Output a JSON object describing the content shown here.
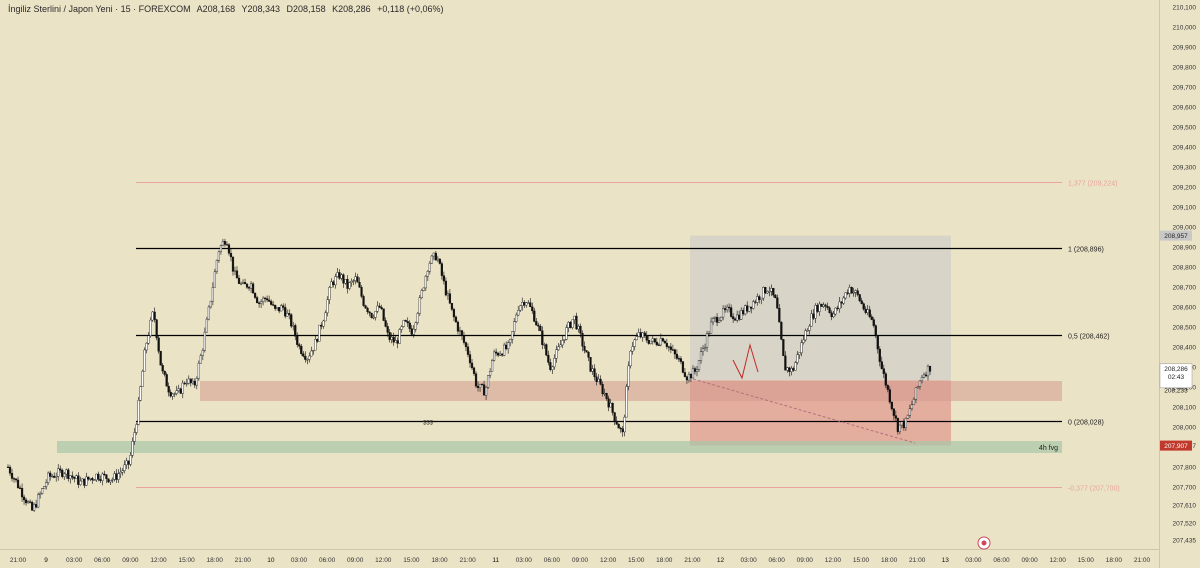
{
  "header": {
    "symbol": "İngiliz Sterlini / Japon Yeni · 15 · FOREXCOM",
    "open": "A208,168",
    "high": "Y208,343",
    "low": "D208,158",
    "close": "K208,286",
    "change": "+0,118 (+0,06%)"
  },
  "colors": {
    "background": "#ebe3c6",
    "candle": "#111111",
    "fib_line": "#000000",
    "fib_ext": "#e8a4a0",
    "zone_red": "#d29a8c",
    "zone_green": "#a8c8a8",
    "box_grey": "#c9c9c9",
    "box_red": "#e08a86"
  },
  "chart_data": {
    "type": "candlestick",
    "symbol": "GBPJPY",
    "timeframe": "15",
    "ylim": [
      207.425,
      210.1
    ],
    "y_ticks": [
      "210,100",
      "210,000",
      "209,900",
      "209,800",
      "209,700",
      "209,600",
      "209,500",
      "209,400",
      "209,300",
      "209,200",
      "209,100",
      "209,000",
      "208,900",
      "208,800",
      "208,700",
      "208,600",
      "208,500",
      "208,400",
      "208,300",
      "208,200",
      "208,100",
      "208,000",
      "207,907",
      "207,800",
      "207,700",
      "207,610",
      "207,520",
      "207,435"
    ],
    "x_ticks": [
      "21:00",
      "9",
      "03:00",
      "06:00",
      "09:00",
      "12:00",
      "15:00",
      "18:00",
      "21:00",
      "10",
      "03:00",
      "06:00",
      "09:00",
      "12:00",
      "15:00",
      "18:00",
      "21:00",
      "11",
      "03:00",
      "06:00",
      "09:00",
      "12:00",
      "15:00",
      "18:00",
      "21:00",
      "12",
      "03:00",
      "06:00",
      "09:00",
      "12:00",
      "15:00",
      "18:00",
      "21:00",
      "13",
      "03:00",
      "06:00",
      "09:00",
      "12:00",
      "15:00",
      "18:00",
      "21:00"
    ],
    "price_labels": {
      "box_top": "208,957",
      "last": "208,286",
      "countdown": "02:43",
      "box_mid": "208,233",
      "box_low": "207,907"
    },
    "fib_levels": [
      {
        "label": "1 (208,896)",
        "value": 208.896
      },
      {
        "label": "0,5 (208,462)",
        "value": 208.462
      },
      {
        "label": "0 (208,028)",
        "value": 208.028
      },
      {
        "label": "1,377 (209,224)",
        "value": 209.224
      },
      {
        "label": "-0,377 (207,700)",
        "value": 207.7
      }
    ],
    "zones": [
      {
        "label": "",
        "from": 208.13,
        "to": 208.23
      },
      {
        "label": "4h fvg",
        "from": 207.87,
        "to": 207.93
      }
    ],
    "annotations": [
      "$$$"
    ],
    "path": [
      [
        0,
        207.8
      ],
      [
        3,
        207.58
      ],
      [
        5,
        207.75
      ],
      [
        7,
        207.78
      ],
      [
        9,
        207.72
      ],
      [
        11,
        207.76
      ],
      [
        13,
        207.74
      ],
      [
        15,
        207.82
      ],
      [
        16,
        208.06
      ],
      [
        17,
        208.4
      ],
      [
        18,
        208.58
      ],
      [
        19,
        208.28
      ],
      [
        20,
        208.18
      ],
      [
        21,
        208.16
      ],
      [
        22,
        208.24
      ],
      [
        23,
        208.2
      ],
      [
        24,
        208.38
      ],
      [
        25,
        208.62
      ],
      [
        26,
        208.88
      ],
      [
        27,
        208.95
      ],
      [
        28,
        208.76
      ],
      [
        29,
        208.7
      ],
      [
        30,
        208.72
      ],
      [
        31,
        208.62
      ],
      [
        32,
        208.65
      ],
      [
        33,
        208.58
      ],
      [
        34,
        208.6
      ],
      [
        35,
        208.52
      ],
      [
        36,
        208.4
      ],
      [
        37,
        208.35
      ],
      [
        38,
        208.42
      ],
      [
        39,
        208.55
      ],
      [
        40,
        208.72
      ],
      [
        41,
        208.76
      ],
      [
        42,
        208.7
      ],
      [
        43,
        208.74
      ],
      [
        44,
        208.62
      ],
      [
        45,
        208.56
      ],
      [
        46,
        208.6
      ],
      [
        47,
        208.45
      ],
      [
        48,
        208.42
      ],
      [
        49,
        208.52
      ],
      [
        50,
        208.48
      ],
      [
        51,
        208.64
      ],
      [
        52,
        208.82
      ],
      [
        53,
        208.86
      ],
      [
        54,
        208.7
      ],
      [
        55,
        208.56
      ],
      [
        56,
        208.46
      ],
      [
        57,
        208.36
      ],
      [
        58,
        208.2
      ],
      [
        59,
        208.18
      ],
      [
        60,
        208.36
      ],
      [
        61,
        208.38
      ],
      [
        62,
        208.4
      ],
      [
        63,
        208.6
      ],
      [
        64,
        208.64
      ],
      [
        65,
        208.56
      ],
      [
        66,
        208.44
      ],
      [
        67,
        208.3
      ],
      [
        68,
        208.38
      ],
      [
        69,
        208.48
      ],
      [
        70,
        208.55
      ],
      [
        71,
        208.42
      ],
      [
        72,
        208.3
      ],
      [
        73,
        208.22
      ],
      [
        74,
        208.15
      ],
      [
        75,
        208.05
      ],
      [
        76,
        207.96
      ],
      [
        77,
        208.4
      ],
      [
        78,
        208.46
      ],
      [
        79,
        208.44
      ],
      [
        80,
        208.42
      ],
      [
        81,
        208.45
      ],
      [
        82,
        208.38
      ],
      [
        83,
        208.33
      ],
      [
        84,
        208.25
      ],
      [
        85,
        208.28
      ],
      [
        86,
        208.4
      ],
      [
        87,
        208.52
      ],
      [
        88,
        208.56
      ],
      [
        89,
        208.58
      ],
      [
        90,
        208.55
      ],
      [
        91,
        208.58
      ],
      [
        92,
        208.62
      ],
      [
        93,
        208.66
      ],
      [
        94,
        208.7
      ],
      [
        95,
        208.62
      ],
      [
        96,
        208.3
      ],
      [
        97,
        208.28
      ],
      [
        98,
        208.4
      ],
      [
        99,
        208.52
      ],
      [
        100,
        208.6
      ],
      [
        101,
        208.62
      ],
      [
        102,
        208.56
      ],
      [
        103,
        208.62
      ],
      [
        104,
        208.7
      ],
      [
        105,
        208.66
      ],
      [
        106,
        208.58
      ],
      [
        107,
        208.52
      ],
      [
        108,
        208.3
      ],
      [
        109,
        208.15
      ],
      [
        110,
        208.0
      ],
      [
        111,
        208.02
      ],
      [
        112,
        208.14
      ],
      [
        113,
        208.26
      ],
      [
        114,
        208.3
      ]
    ]
  }
}
